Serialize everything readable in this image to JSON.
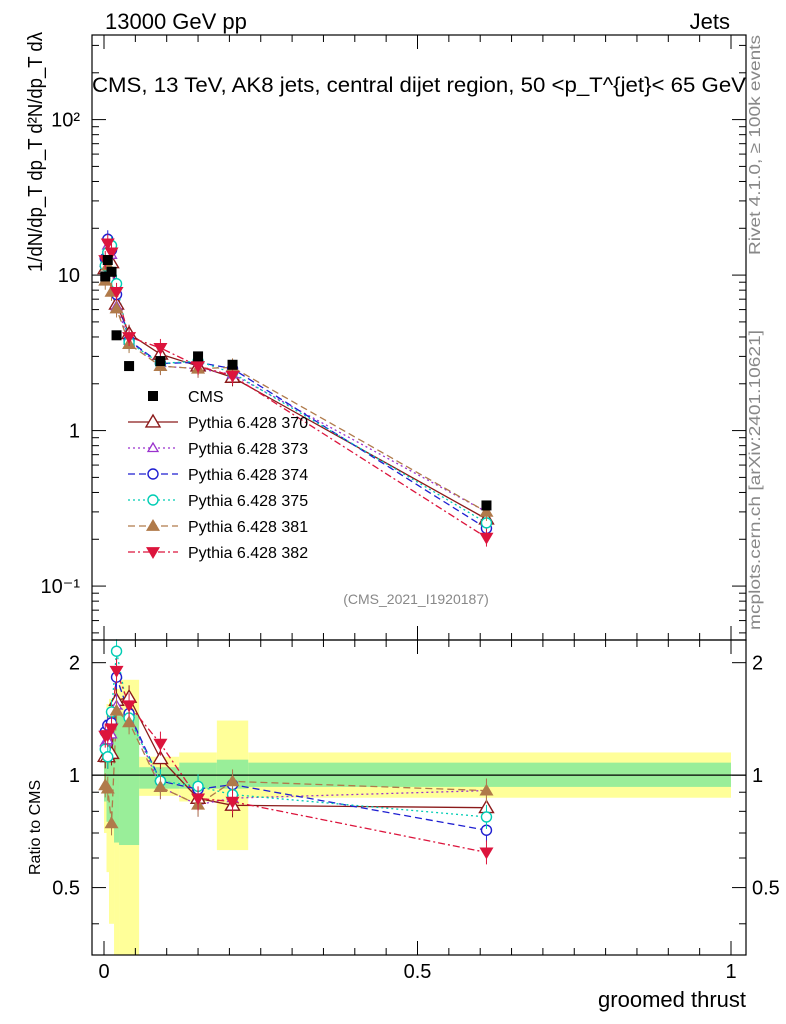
{
  "header": {
    "left": "13000 GeV pp",
    "right": "Jets"
  },
  "side_labels": {
    "rivet": "Rivet 4.1.0, ≥ 100k events",
    "mcplots": "mcplots.cern.ch [arXiv:2401.10621]"
  },
  "chart_data": {
    "type": "scatter",
    "title": "CMS, 13 TeV, AK8 jets, central dijet region, 50 <p_T^{jet}< 65 GeV",
    "watermark": "(CMS_2021_I1920187)",
    "xlabel": "groomed thrust",
    "ylabel": "1/dN/dp_T dp_T d²N/dp_T dλ",
    "ylabel_ratio": "Ratio to CMS",
    "xlim": [
      -0.03,
      1.0
    ],
    "ylim_main": [
      0.045,
      350
    ],
    "ylim_ratio": [
      0.33,
      2.3
    ],
    "yscale_main": "log",
    "yscale_ratio": "log",
    "x_ticks": [
      0,
      0.5,
      1
    ],
    "x_tick_labels": [
      "0",
      "0.5",
      "1"
    ],
    "y_ticks_main": [
      10,
      1,
      0.1,
      100
    ],
    "y_tick_labels_main": [
      "10",
      "1",
      "10⁻¹",
      "10²"
    ],
    "y_ticks_ratio": [
      2,
      1,
      0.5
    ],
    "y_tick_labels_ratio": [
      "2",
      "1",
      "0.5"
    ],
    "legend_position": "middle-left",
    "x": [
      0.002,
      0.006,
      0.012,
      0.02,
      0.04,
      0.09,
      0.15,
      0.205,
      0.61
    ],
    "band_edges": [
      0,
      0.004,
      0.008,
      0.016,
      0.024,
      0.056,
      0.12,
      0.18,
      0.23,
      1.0
    ],
    "band_green": [
      [
        0.85,
        1.25
      ],
      [
        0.75,
        1.3
      ],
      [
        0.75,
        1.5
      ],
      [
        0.66,
        1.6
      ],
      [
        0.65,
        1.45
      ],
      [
        0.92,
        1.05
      ],
      [
        0.92,
        1.08
      ],
      [
        0.92,
        1.1
      ],
      [
        0.93,
        1.08
      ]
    ],
    "band_yellow": [
      [
        0.7,
        1.4
      ],
      [
        0.55,
        1.55
      ],
      [
        0.4,
        1.6
      ],
      [
        0.3,
        1.7
      ],
      [
        0.3,
        1.8
      ],
      [
        0.88,
        1.12
      ],
      [
        0.85,
        1.15
      ],
      [
        0.63,
        1.4
      ],
      [
        0.87,
        1.15
      ]
    ],
    "reference": {
      "name": "CMS",
      "values": [
        9.8,
        12.5,
        10.5,
        4.1,
        2.6,
        2.8,
        3.0,
        2.65,
        0.33
      ]
    },
    "series": [
      {
        "name": "Pythia 6.428 370",
        "color": "#8b1a1a",
        "marker": "triangle-open",
        "dash": "",
        "values": [
          11.0,
          14.0,
          12.0,
          6.5,
          4.2,
          3.1,
          2.6,
          2.2,
          0.27
        ]
      },
      {
        "name": "Pythia 6.428 373",
        "color": "#9a32cd",
        "marker": "triangle-open-small",
        "dash": "2 3",
        "values": [
          12.0,
          15.5,
          13.5,
          6.3,
          3.8,
          2.6,
          2.5,
          2.3,
          0.3
        ]
      },
      {
        "name": "Pythia 6.428 374",
        "color": "#1f1fd1",
        "marker": "circle-open",
        "dash": "7 4",
        "values": [
          12.8,
          17.0,
          14.5,
          7.5,
          3.8,
          2.7,
          2.75,
          2.5,
          0.235
        ]
      },
      {
        "name": "Pythia 6.428 375",
        "color": "#00cdb4",
        "marker": "circle-open",
        "dash": "2 3",
        "values": [
          11.5,
          14.0,
          15.5,
          8.8,
          3.7,
          2.7,
          2.8,
          2.35,
          0.255
        ]
      },
      {
        "name": "Pythia 6.428 381",
        "color": "#b07a4a",
        "marker": "triangle-filled",
        "dash": "7 4",
        "values": [
          9.2,
          11.5,
          7.8,
          6.1,
          3.6,
          2.6,
          2.5,
          2.55,
          0.3
        ]
      },
      {
        "name": "Pythia 6.428 382",
        "color": "#dc143c",
        "marker": "triangle-down-filled",
        "dash": "7 3 2 3",
        "values": [
          12.5,
          16.0,
          14.0,
          7.8,
          4.0,
          3.4,
          2.6,
          2.25,
          0.205
        ]
      }
    ]
  }
}
